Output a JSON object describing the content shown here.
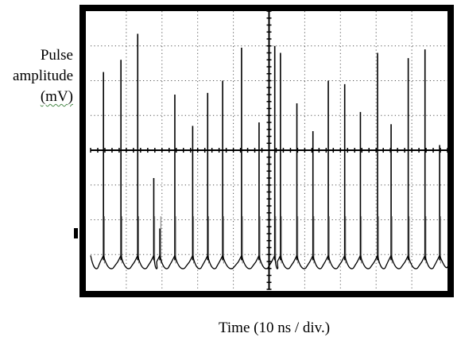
{
  "chart_data": {
    "type": "line",
    "title": "",
    "ylabel": [
      "Pulse",
      "amplitude",
      "(mV)"
    ],
    "xlabel": "Time (10 ns / div.)",
    "grid": true,
    "grid_divisions": {
      "x": 10,
      "y": 8
    },
    "xlim": [
      0,
      100
    ],
    "trace_color": "#000000",
    "frame_color": "#000000",
    "pulses": {
      "x": [
        3.6,
        8.5,
        13.2,
        17.7,
        19.4,
        23.6,
        28.6,
        32.8,
        37.0,
        42.3,
        47.2,
        51.6,
        53.2,
        57.8,
        62.3,
        66.6,
        71.2,
        75.6,
        80.4,
        84.2,
        89.0,
        93.7,
        97.8
      ],
      "y": [
        6.25,
        6.6,
        7.35,
        3.2,
        1.75,
        5.6,
        4.7,
        5.65,
        6.0,
        6.95,
        4.8,
        7.0,
        6.8,
        5.35,
        4.55,
        6.0,
        5.9,
        5.1,
        6.8,
        4.75,
        6.65,
        6.9,
        4.15
      ]
    },
    "baseline_level": 0.7
  }
}
